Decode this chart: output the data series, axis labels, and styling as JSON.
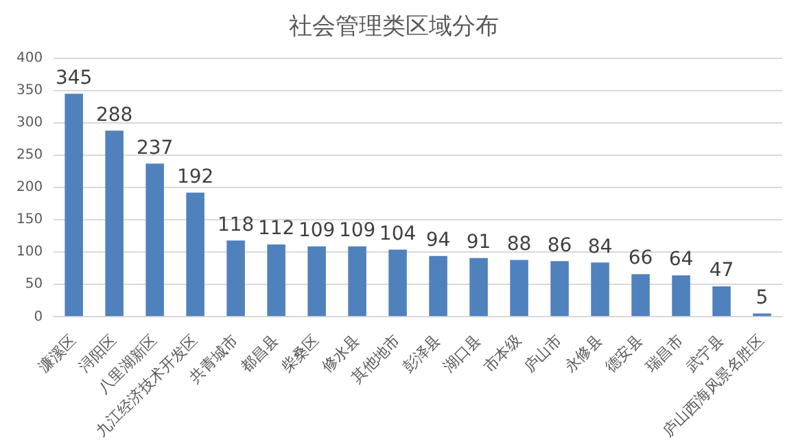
{
  "chart_data": {
    "type": "bar",
    "title": "社会管理类区域分布",
    "categories": [
      "濂溪区",
      "浔阳区",
      "八里湖新区",
      "九江经济技术开发区",
      "共青城市",
      "都昌县",
      "柴桑区",
      "修水县",
      "其他地市",
      "彭泽县",
      "湖口县",
      "市本级",
      "庐山市",
      "永修县",
      "德安县",
      "瑞昌市",
      "武宁县",
      "庐山西海风景名胜区"
    ],
    "values": [
      345,
      288,
      237,
      192,
      118,
      112,
      109,
      109,
      104,
      94,
      91,
      88,
      86,
      84,
      66,
      64,
      47,
      5
    ],
    "color": "#4f81bd",
    "ylim": [
      0,
      400
    ],
    "yticks": [
      0,
      50,
      100,
      150,
      200,
      250,
      300,
      350,
      400
    ],
    "grid": "y",
    "data_labels": true,
    "legend": false
  }
}
